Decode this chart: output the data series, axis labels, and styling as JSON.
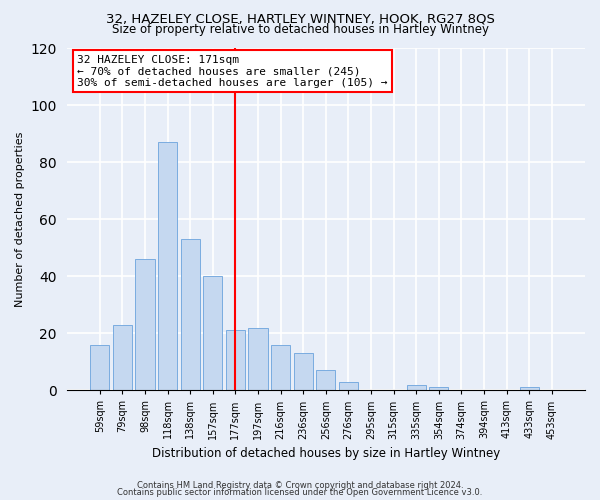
{
  "title": "32, HAZELEY CLOSE, HARTLEY WINTNEY, HOOK, RG27 8QS",
  "subtitle": "Size of property relative to detached houses in Hartley Wintney",
  "xlabel": "Distribution of detached houses by size in Hartley Wintney",
  "ylabel": "Number of detached properties",
  "bar_labels": [
    "59sqm",
    "79sqm",
    "98sqm",
    "118sqm",
    "138sqm",
    "157sqm",
    "177sqm",
    "197sqm",
    "216sqm",
    "236sqm",
    "256sqm",
    "276sqm",
    "295sqm",
    "315sqm",
    "335sqm",
    "354sqm",
    "374sqm",
    "394sqm",
    "413sqm",
    "433sqm",
    "453sqm"
  ],
  "bar_values": [
    16,
    23,
    46,
    87,
    53,
    40,
    21,
    22,
    16,
    13,
    7,
    3,
    0,
    0,
    2,
    1,
    0,
    0,
    0,
    1,
    0
  ],
  "bar_color": "#c5d8f0",
  "bar_edge_color": "#7aace0",
  "reference_line_x": 6,
  "reference_line_color": "red",
  "annotation_title": "32 HAZELEY CLOSE: 171sqm",
  "annotation_line1": "← 70% of detached houses are smaller (245)",
  "annotation_line2": "30% of semi-detached houses are larger (105) →",
  "annotation_box_color": "white",
  "annotation_box_edge_color": "red",
  "ylim": [
    0,
    120
  ],
  "yticks": [
    0,
    20,
    40,
    60,
    80,
    100,
    120
  ],
  "footer1": "Contains HM Land Registry data © Crown copyright and database right 2024.",
  "footer2": "Contains public sector information licensed under the Open Government Licence v3.0.",
  "bg_color": "#e8eef8",
  "plot_bg_color": "#e8eef8",
  "grid_color": "#ffffff"
}
